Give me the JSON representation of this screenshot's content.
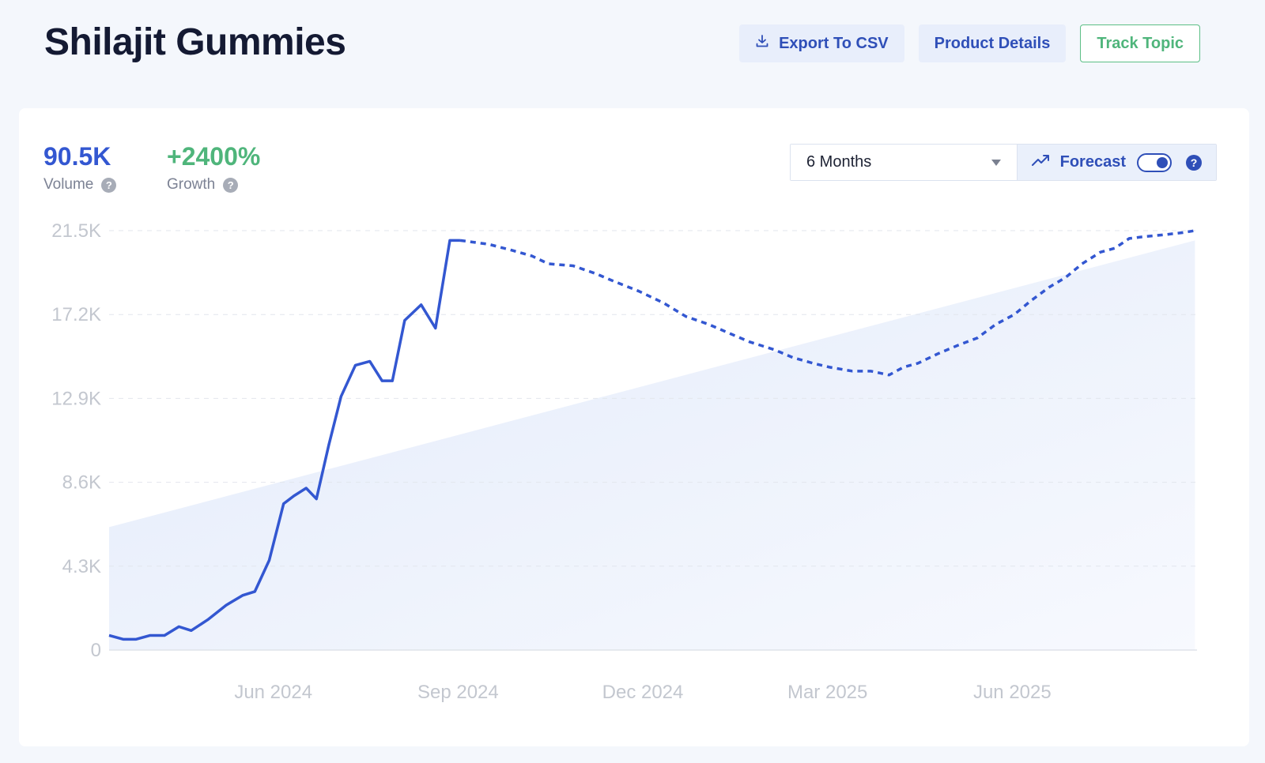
{
  "header": {
    "title": "Shilajit Gummies",
    "export_label": "Export To CSV",
    "details_label": "Product Details",
    "track_label": "Track Topic"
  },
  "stats": {
    "volume_value": "90.5K",
    "volume_label": "Volume",
    "growth_value": "+2400%",
    "growth_label": "Growth"
  },
  "controls": {
    "range_selected": "6 Months",
    "forecast_label": "Forecast",
    "forecast_enabled": true
  },
  "colors": {
    "accent": "#3357d1",
    "growth": "#4fb57b",
    "trend_fill": "#e6eefb"
  },
  "icons": [
    "download-icon",
    "question-icon",
    "chevron-down-icon",
    "trending-up-icon"
  ],
  "chart_data": {
    "type": "line",
    "y_ticks": [
      "0",
      "4.3K",
      "8.6K",
      "12.9K",
      "17.2K",
      "21.5K"
    ],
    "ylim": [
      0,
      21500
    ],
    "x_ticks": [
      {
        "label": "Jun 2024",
        "x": 7
      },
      {
        "label": "Sep 2024",
        "x": 16
      },
      {
        "label": "Dec 2024",
        "x": 25
      },
      {
        "label": "Mar 2025",
        "x": 34
      },
      {
        "label": "Jun 2025",
        "x": 43
      }
    ],
    "xlim": [
      -1,
      52
    ],
    "grid": true,
    "series": [
      {
        "style": "solid",
        "x": [
          -1,
          -0.3,
          0.3,
          1.0,
          1.7,
          2.4,
          3.0,
          3.8,
          4.7,
          5.5,
          6.1,
          6.8,
          7.5,
          8.0,
          8.6,
          9.1,
          9.7,
          10.3,
          11.0,
          11.7,
          12.3,
          12.8,
          13.4,
          14.2,
          14.9,
          15.6,
          16.1
        ],
        "values": [
          750,
          550,
          550,
          750,
          750,
          1200,
          1000,
          1550,
          2300,
          2800,
          3000,
          4600,
          7500,
          7900,
          8300,
          7750,
          10500,
          13000,
          14600,
          14800,
          13800,
          13800,
          16900,
          17700,
          16500,
          21000,
          21000
        ]
      },
      {
        "style": "dashed",
        "x": [
          16.1,
          17.5,
          18.6,
          19.6,
          20.4,
          21.6,
          22.7,
          23.6,
          24.8,
          26.0,
          27.1,
          28.2,
          29.3,
          30.2,
          31.4,
          32.3,
          33.3,
          34.1,
          35.2,
          36.1,
          37.0,
          37.7,
          38.4,
          39.4,
          40.3,
          41.3,
          42.2,
          43.1,
          43.9,
          44.8,
          45.6,
          46.4,
          47.3,
          48.0,
          48.7,
          49.5,
          50.5,
          51.3,
          51.9
        ],
        "values": [
          21000,
          20800,
          20500,
          20200,
          19800,
          19700,
          19300,
          18900,
          18400,
          17800,
          17100,
          16700,
          16200,
          15800,
          15400,
          15000,
          14700,
          14500,
          14300,
          14300,
          14100,
          14500,
          14700,
          15200,
          15600,
          16000,
          16700,
          17200,
          17900,
          18600,
          19100,
          19800,
          20400,
          20600,
          21100,
          21200,
          21300,
          21400,
          21500
        ]
      },
      {
        "style": "trend-area",
        "x": [
          -1,
          51.9
        ],
        "values": [
          6300,
          21000
        ]
      }
    ]
  }
}
